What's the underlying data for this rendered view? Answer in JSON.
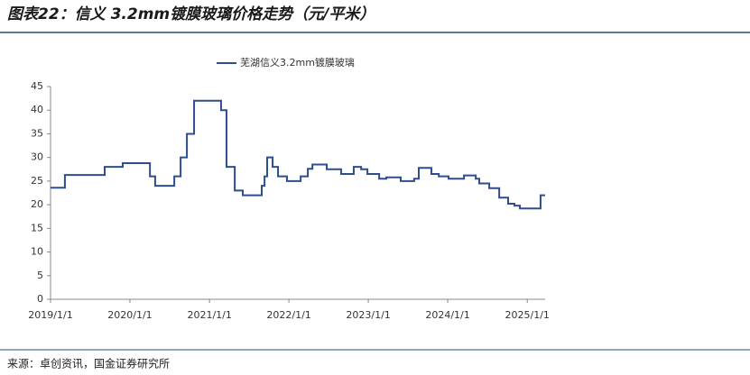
{
  "chart_data": {
    "type": "line",
    "step": "post",
    "title": "图表22：信义 3.2mm镀膜玻璃价格走势（元/平米）",
    "source": "来源：卓创资讯，国金证券研究所",
    "x": [
      "2019-01-01",
      "2019-03-08",
      "2019-09-07",
      "2019-11-29",
      "2020-04-02",
      "2020-04-26",
      "2020-07-23",
      "2020-08-21",
      "2020-09-19",
      "2020-10-22",
      "2021-02-23",
      "2021-03-20",
      "2021-04-27",
      "2021-06-03",
      "2021-08-29",
      "2021-09-11",
      "2021-09-23",
      "2021-10-18",
      "2021-11-12",
      "2021-12-23",
      "2022-02-24",
      "2022-03-29",
      "2022-04-19",
      "2022-06-24",
      "2022-08-29",
      "2022-10-26",
      "2022-11-29",
      "2022-12-28",
      "2023-02-20",
      "2023-03-25",
      "2023-05-30",
      "2023-07-31",
      "2023-08-21",
      "2023-10-18",
      "2023-11-21",
      "2024-01-05",
      "2024-03-16",
      "2024-05-09",
      "2024-05-25",
      "2024-07-10",
      "2024-08-25",
      "2024-10-05",
      "2024-11-03",
      "2024-11-28",
      "2025-03-03",
      "2025-03-24"
    ],
    "series": [
      {
        "name": "芜湖信义3.2mm镀膜玻璃",
        "color": "#2e4d8f",
        "values": [
          23.6,
          26.3,
          28,
          28.8,
          26,
          24,
          26,
          30,
          35,
          42,
          40,
          28,
          23,
          22,
          24,
          26,
          30,
          28,
          26,
          25,
          26,
          27.6,
          28.5,
          27.5,
          26.5,
          28,
          27.5,
          26.5,
          25.5,
          25.8,
          25,
          25.5,
          27.8,
          26.5,
          26,
          25.5,
          26.2,
          25.5,
          24.5,
          23.5,
          21.5,
          20.2,
          19.8,
          19.2,
          22,
          22
        ]
      }
    ],
    "xlim": [
      "2019-01-01",
      "2025-03-24"
    ],
    "xticks": [
      {
        "value": "2019-01-01",
        "label": "2019/1/1"
      },
      {
        "value": "2020-01-01",
        "label": "2020/1/1"
      },
      {
        "value": "2021-01-01",
        "label": "2021/1/1"
      },
      {
        "value": "2022-01-01",
        "label": "2022/1/1"
      },
      {
        "value": "2023-01-01",
        "label": "2023/1/1"
      },
      {
        "value": "2024-01-01",
        "label": "2024/1/1"
      },
      {
        "value": "2025-01-01",
        "label": "2025/1/1"
      }
    ],
    "ylim": [
      0,
      45
    ],
    "yticks": [
      0,
      5,
      10,
      15,
      20,
      25,
      30,
      35,
      40,
      45
    ],
    "grid": false,
    "legend": "top"
  }
}
